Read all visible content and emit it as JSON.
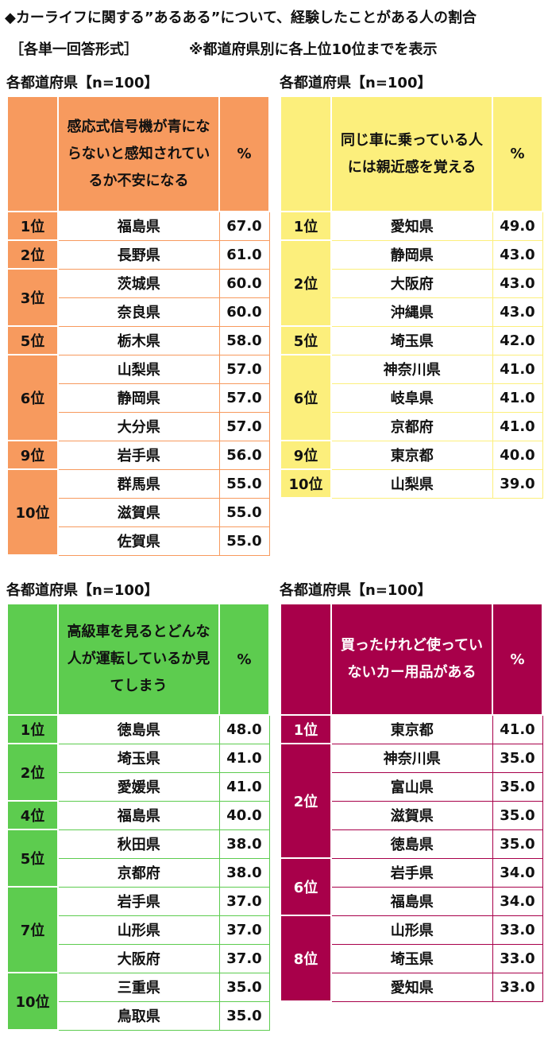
{
  "title": "◆カーライフに関する”あるある”について、経験したことがある人の割合",
  "subtitle": {
    "format": "［各単一回答形式］",
    "note": "※都道府県別に各上位10位までを表示"
  },
  "tables": [
    {
      "label": "各都道府県【n=100】",
      "question": "感応式信号機が青にならないと感知されているか不安になる",
      "percent_header": "%",
      "groups": [
        {
          "rank": "1位",
          "rows": [
            [
              "福島県",
              "67.0"
            ]
          ]
        },
        {
          "rank": "2位",
          "rows": [
            [
              "長野県",
              "61.0"
            ]
          ]
        },
        {
          "rank": "3位",
          "rows": [
            [
              "茨城県",
              "60.0"
            ],
            [
              "奈良県",
              "60.0"
            ]
          ]
        },
        {
          "rank": "5位",
          "rows": [
            [
              "栃木県",
              "58.0"
            ]
          ]
        },
        {
          "rank": "6位",
          "rows": [
            [
              "山梨県",
              "57.0"
            ],
            [
              "静岡県",
              "57.0"
            ],
            [
              "大分県",
              "57.0"
            ]
          ]
        },
        {
          "rank": "9位",
          "rows": [
            [
              "岩手県",
              "56.0"
            ]
          ]
        },
        {
          "rank": "10位",
          "rows": [
            [
              "群馬県",
              "55.0"
            ],
            [
              "滋賀県",
              "55.0"
            ],
            [
              "佐賀県",
              "55.0"
            ]
          ]
        }
      ]
    },
    {
      "label": "各都道府県【n=100】",
      "question": "同じ車に乗っている人には親近感を覚える",
      "percent_header": "%",
      "groups": [
        {
          "rank": "1位",
          "rows": [
            [
              "愛知県",
              "49.0"
            ]
          ]
        },
        {
          "rank": "2位",
          "rows": [
            [
              "静岡県",
              "43.0"
            ],
            [
              "大阪府",
              "43.0"
            ],
            [
              "沖縄県",
              "43.0"
            ]
          ]
        },
        {
          "rank": "5位",
          "rows": [
            [
              "埼玉県",
              "42.0"
            ]
          ]
        },
        {
          "rank": "6位",
          "rows": [
            [
              "神奈川県",
              "41.0"
            ],
            [
              "岐阜県",
              "41.0"
            ],
            [
              "京都府",
              "41.0"
            ]
          ]
        },
        {
          "rank": "9位",
          "rows": [
            [
              "東京都",
              "40.0"
            ]
          ]
        },
        {
          "rank": "10位",
          "rows": [
            [
              "山梨県",
              "39.0"
            ]
          ]
        }
      ]
    },
    {
      "label": "各都道府県【n=100】",
      "question": "高級車を見るとどんな人が運転しているか見てしまう",
      "percent_header": "%",
      "groups": [
        {
          "rank": "1位",
          "rows": [
            [
              "徳島県",
              "48.0"
            ]
          ]
        },
        {
          "rank": "2位",
          "rows": [
            [
              "埼玉県",
              "41.0"
            ],
            [
              "愛媛県",
              "41.0"
            ]
          ]
        },
        {
          "rank": "4位",
          "rows": [
            [
              "福島県",
              "40.0"
            ]
          ]
        },
        {
          "rank": "5位",
          "rows": [
            [
              "秋田県",
              "38.0"
            ],
            [
              "京都府",
              "38.0"
            ]
          ]
        },
        {
          "rank": "7位",
          "rows": [
            [
              "岩手県",
              "37.0"
            ],
            [
              "山形県",
              "37.0"
            ],
            [
              "大阪府",
              "37.0"
            ]
          ]
        },
        {
          "rank": "10位",
          "rows": [
            [
              "三重県",
              "35.0"
            ],
            [
              "鳥取県",
              "35.0"
            ]
          ]
        }
      ]
    },
    {
      "label": "各都道府県【n=100】",
      "question": "買ったけれど使っていないカー用品がある",
      "percent_header": "%",
      "groups": [
        {
          "rank": "1位",
          "rows": [
            [
              "東京都",
              "41.0"
            ]
          ]
        },
        {
          "rank": "2位",
          "rows": [
            [
              "神奈川県",
              "35.0"
            ],
            [
              "富山県",
              "35.0"
            ],
            [
              "滋賀県",
              "35.0"
            ],
            [
              "徳島県",
              "35.0"
            ]
          ]
        },
        {
          "rank": "6位",
          "rows": [
            [
              "岩手県",
              "34.0"
            ],
            [
              "福島県",
              "34.0"
            ]
          ]
        },
        {
          "rank": "8位",
          "rows": [
            [
              "山形県",
              "33.0"
            ],
            [
              "埼玉県",
              "33.0"
            ],
            [
              "愛知県",
              "33.0"
            ]
          ]
        }
      ]
    }
  ]
}
